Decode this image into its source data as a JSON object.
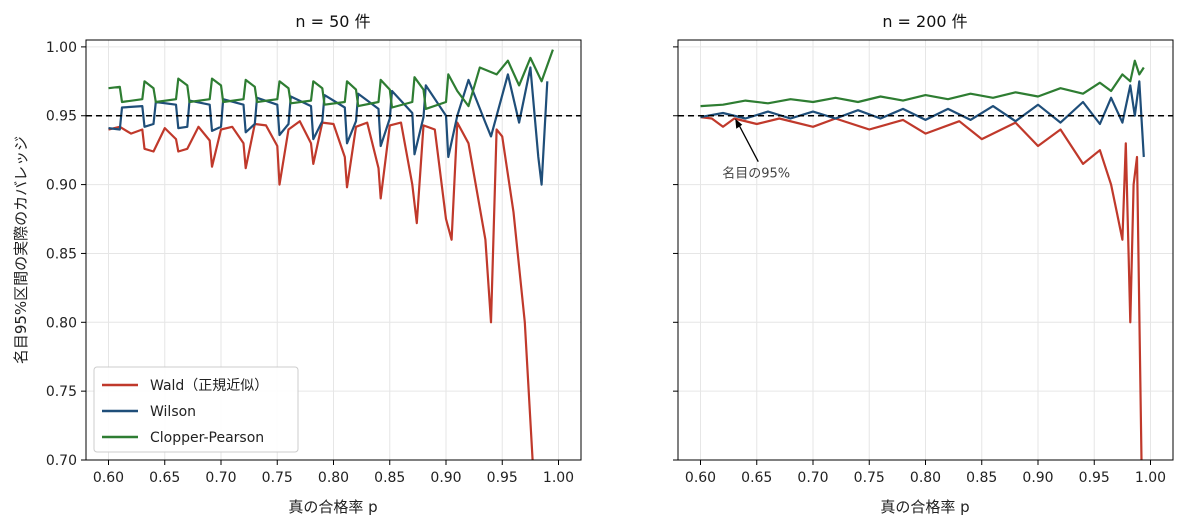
{
  "chart_data": [
    {
      "type": "line",
      "title": "n = 50 件",
      "xlabel": "真の合格率 p",
      "ylabel": "名目95%区間の実際のカバレッジ",
      "xlim": [
        0.58,
        1.02
      ],
      "ylim": [
        0.7,
        1.005
      ],
      "xticks": [
        "0.60",
        "0.65",
        "0.70",
        "0.75",
        "0.80",
        "0.85",
        "0.90",
        "0.95",
        "1.00"
      ],
      "yticks": [
        "0.70",
        "0.75",
        "0.80",
        "0.85",
        "0.90",
        "0.95",
        "1.00"
      ],
      "grid": true,
      "legend": "lower-left",
      "reference_line": {
        "y": 0.95,
        "style": "dashed",
        "color": "#000000"
      },
      "series": [
        {
          "name": "Wald（正規近似）",
          "color": "#c0392b",
          "points": [
            [
              0.6,
              0.94
            ],
            [
              0.61,
              0.942
            ],
            [
              0.62,
              0.937
            ],
            [
              0.63,
              0.94
            ],
            [
              0.632,
              0.926
            ],
            [
              0.64,
              0.924
            ],
            [
              0.65,
              0.941
            ],
            [
              0.66,
              0.933
            ],
            [
              0.662,
              0.924
            ],
            [
              0.67,
              0.926
            ],
            [
              0.68,
              0.942
            ],
            [
              0.69,
              0.932
            ],
            [
              0.692,
              0.913
            ],
            [
              0.7,
              0.94
            ],
            [
              0.71,
              0.942
            ],
            [
              0.72,
              0.93
            ],
            [
              0.722,
              0.912
            ],
            [
              0.73,
              0.944
            ],
            [
              0.74,
              0.943
            ],
            [
              0.75,
              0.928
            ],
            [
              0.752,
              0.9
            ],
            [
              0.76,
              0.94
            ],
            [
              0.77,
              0.946
            ],
            [
              0.78,
              0.93
            ],
            [
              0.782,
              0.915
            ],
            [
              0.79,
              0.945
            ],
            [
              0.8,
              0.944
            ],
            [
              0.81,
              0.92
            ],
            [
              0.812,
              0.898
            ],
            [
              0.82,
              0.942
            ],
            [
              0.83,
              0.945
            ],
            [
              0.84,
              0.912
            ],
            [
              0.842,
              0.89
            ],
            [
              0.85,
              0.943
            ],
            [
              0.86,
              0.945
            ],
            [
              0.87,
              0.9
            ],
            [
              0.874,
              0.872
            ],
            [
              0.88,
              0.943
            ],
            [
              0.89,
              0.94
            ],
            [
              0.9,
              0.875
            ],
            [
              0.905,
              0.86
            ],
            [
              0.91,
              0.945
            ],
            [
              0.92,
              0.93
            ],
            [
              0.935,
              0.86
            ],
            [
              0.94,
              0.8
            ],
            [
              0.945,
              0.94
            ],
            [
              0.95,
              0.935
            ],
            [
              0.96,
              0.88
            ],
            [
              0.97,
              0.8
            ],
            [
              0.977,
              0.7
            ]
          ]
        },
        {
          "name": "Wilson",
          "color": "#1f4e79",
          "points": [
            [
              0.6,
              0.941
            ],
            [
              0.61,
              0.94
            ],
            [
              0.612,
              0.956
            ],
            [
              0.63,
              0.957
            ],
            [
              0.632,
              0.942
            ],
            [
              0.64,
              0.944
            ],
            [
              0.642,
              0.96
            ],
            [
              0.66,
              0.958
            ],
            [
              0.662,
              0.941
            ],
            [
              0.67,
              0.942
            ],
            [
              0.672,
              0.961
            ],
            [
              0.69,
              0.958
            ],
            [
              0.692,
              0.939
            ],
            [
              0.7,
              0.942
            ],
            [
              0.702,
              0.962
            ],
            [
              0.72,
              0.958
            ],
            [
              0.722,
              0.938
            ],
            [
              0.73,
              0.944
            ],
            [
              0.732,
              0.963
            ],
            [
              0.75,
              0.958
            ],
            [
              0.752,
              0.936
            ],
            [
              0.76,
              0.944
            ],
            [
              0.762,
              0.964
            ],
            [
              0.78,
              0.957
            ],
            [
              0.782,
              0.933
            ],
            [
              0.79,
              0.946
            ],
            [
              0.792,
              0.965
            ],
            [
              0.81,
              0.956
            ],
            [
              0.812,
              0.93
            ],
            [
              0.82,
              0.946
            ],
            [
              0.822,
              0.966
            ],
            [
              0.84,
              0.955
            ],
            [
              0.842,
              0.928
            ],
            [
              0.85,
              0.948
            ],
            [
              0.852,
              0.968
            ],
            [
              0.87,
              0.952
            ],
            [
              0.872,
              0.922
            ],
            [
              0.88,
              0.949
            ],
            [
              0.882,
              0.972
            ],
            [
              0.9,
              0.95
            ],
            [
              0.902,
              0.92
            ],
            [
              0.91,
              0.95
            ],
            [
              0.92,
              0.976
            ],
            [
              0.935,
              0.945
            ],
            [
              0.94,
              0.935
            ],
            [
              0.955,
              0.98
            ],
            [
              0.965,
              0.945
            ],
            [
              0.975,
              0.985
            ],
            [
              0.982,
              0.92
            ],
            [
              0.985,
              0.9
            ],
            [
              0.99,
              0.975
            ]
          ]
        },
        {
          "name": "Clopper-Pearson",
          "color": "#2e7d32",
          "points": [
            [
              0.6,
              0.97
            ],
            [
              0.61,
              0.971
            ],
            [
              0.612,
              0.96
            ],
            [
              0.63,
              0.962
            ],
            [
              0.632,
              0.975
            ],
            [
              0.64,
              0.97
            ],
            [
              0.642,
              0.96
            ],
            [
              0.66,
              0.962
            ],
            [
              0.662,
              0.977
            ],
            [
              0.67,
              0.972
            ],
            [
              0.672,
              0.96
            ],
            [
              0.69,
              0.962
            ],
            [
              0.692,
              0.977
            ],
            [
              0.7,
              0.972
            ],
            [
              0.702,
              0.96
            ],
            [
              0.72,
              0.962
            ],
            [
              0.722,
              0.976
            ],
            [
              0.73,
              0.971
            ],
            [
              0.732,
              0.96
            ],
            [
              0.75,
              0.962
            ],
            [
              0.752,
              0.975
            ],
            [
              0.76,
              0.97
            ],
            [
              0.762,
              0.959
            ],
            [
              0.78,
              0.961
            ],
            [
              0.782,
              0.975
            ],
            [
              0.79,
              0.97
            ],
            [
              0.792,
              0.958
            ],
            [
              0.81,
              0.96
            ],
            [
              0.812,
              0.975
            ],
            [
              0.82,
              0.969
            ],
            [
              0.822,
              0.957
            ],
            [
              0.84,
              0.96
            ],
            [
              0.842,
              0.976
            ],
            [
              0.85,
              0.969
            ],
            [
              0.852,
              0.956
            ],
            [
              0.87,
              0.96
            ],
            [
              0.872,
              0.978
            ],
            [
              0.88,
              0.969
            ],
            [
              0.882,
              0.955
            ],
            [
              0.9,
              0.96
            ],
            [
              0.902,
              0.98
            ],
            [
              0.91,
              0.968
            ],
            [
              0.92,
              0.957
            ],
            [
              0.93,
              0.985
            ],
            [
              0.945,
              0.98
            ],
            [
              0.955,
              0.99
            ],
            [
              0.965,
              0.972
            ],
            [
              0.975,
              0.992
            ],
            [
              0.985,
              0.975
            ],
            [
              0.995,
              0.998
            ]
          ]
        }
      ]
    },
    {
      "type": "line",
      "title": "n = 200 件",
      "xlabel": "真の合格率 p",
      "xlim": [
        0.58,
        1.02
      ],
      "ylim": [
        0.7,
        1.005
      ],
      "xticks": [
        "0.60",
        "0.65",
        "0.70",
        "0.75",
        "0.80",
        "0.85",
        "0.90",
        "0.95",
        "1.00"
      ],
      "grid": true,
      "reference_line": {
        "y": 0.95,
        "style": "dashed",
        "color": "#000000"
      },
      "annotation": {
        "text": "名目の95%",
        "x": 0.63,
        "y": 0.95
      },
      "series": [
        {
          "name": "Wald（正規近似）",
          "color": "#c0392b",
          "points": [
            [
              0.6,
              0.949
            ],
            [
              0.61,
              0.948
            ],
            [
              0.62,
              0.942
            ],
            [
              0.63,
              0.948
            ],
            [
              0.65,
              0.944
            ],
            [
              0.67,
              0.948
            ],
            [
              0.7,
              0.942
            ],
            [
              0.72,
              0.948
            ],
            [
              0.75,
              0.94
            ],
            [
              0.78,
              0.947
            ],
            [
              0.8,
              0.937
            ],
            [
              0.83,
              0.946
            ],
            [
              0.85,
              0.933
            ],
            [
              0.88,
              0.945
            ],
            [
              0.9,
              0.928
            ],
            [
              0.92,
              0.94
            ],
            [
              0.94,
              0.915
            ],
            [
              0.955,
              0.925
            ],
            [
              0.965,
              0.9
            ],
            [
              0.97,
              0.88
            ],
            [
              0.975,
              0.86
            ],
            [
              0.978,
              0.93
            ],
            [
              0.982,
              0.8
            ],
            [
              0.985,
              0.9
            ],
            [
              0.988,
              0.92
            ],
            [
              0.992,
              0.7
            ]
          ]
        },
        {
          "name": "Wilson",
          "color": "#1f4e79",
          "points": [
            [
              0.6,
              0.949
            ],
            [
              0.62,
              0.952
            ],
            [
              0.64,
              0.948
            ],
            [
              0.66,
              0.953
            ],
            [
              0.68,
              0.948
            ],
            [
              0.7,
              0.953
            ],
            [
              0.72,
              0.948
            ],
            [
              0.74,
              0.954
            ],
            [
              0.76,
              0.948
            ],
            [
              0.78,
              0.955
            ],
            [
              0.8,
              0.947
            ],
            [
              0.82,
              0.955
            ],
            [
              0.84,
              0.947
            ],
            [
              0.86,
              0.957
            ],
            [
              0.88,
              0.946
            ],
            [
              0.9,
              0.958
            ],
            [
              0.92,
              0.945
            ],
            [
              0.94,
              0.96
            ],
            [
              0.955,
              0.944
            ],
            [
              0.965,
              0.963
            ],
            [
              0.975,
              0.945
            ],
            [
              0.982,
              0.972
            ],
            [
              0.986,
              0.95
            ],
            [
              0.99,
              0.975
            ],
            [
              0.994,
              0.92
            ]
          ]
        },
        {
          "name": "Clopper-Pearson",
          "color": "#2e7d32",
          "points": [
            [
              0.6,
              0.957
            ],
            [
              0.62,
              0.958
            ],
            [
              0.64,
              0.961
            ],
            [
              0.66,
              0.959
            ],
            [
              0.68,
              0.962
            ],
            [
              0.7,
              0.96
            ],
            [
              0.72,
              0.963
            ],
            [
              0.74,
              0.96
            ],
            [
              0.76,
              0.964
            ],
            [
              0.78,
              0.961
            ],
            [
              0.8,
              0.965
            ],
            [
              0.82,
              0.962
            ],
            [
              0.84,
              0.966
            ],
            [
              0.86,
              0.963
            ],
            [
              0.88,
              0.967
            ],
            [
              0.9,
              0.964
            ],
            [
              0.92,
              0.97
            ],
            [
              0.94,
              0.966
            ],
            [
              0.955,
              0.974
            ],
            [
              0.965,
              0.968
            ],
            [
              0.975,
              0.98
            ],
            [
              0.982,
              0.975
            ],
            [
              0.986,
              0.99
            ],
            [
              0.99,
              0.98
            ],
            [
              0.994,
              0.985
            ]
          ]
        }
      ]
    }
  ]
}
